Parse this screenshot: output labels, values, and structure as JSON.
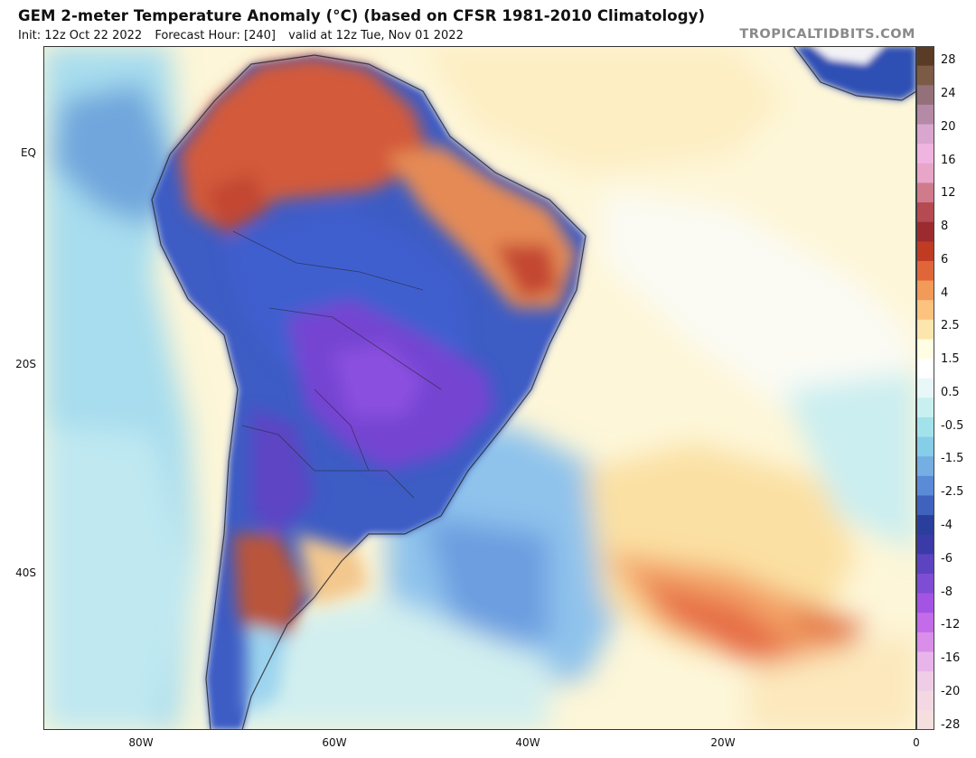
{
  "header": {
    "title": "GEM 2-meter Temperature Anomaly (°C) (based on CFSR 1981-2010 Climatology)",
    "init": "Init: 12z Oct 22 2022",
    "forecast_hour": "Forecast Hour: [240]",
    "valid": "valid at 12z Tue, Nov 01 2022",
    "credit": "TROPICALTIDBITS.COM"
  },
  "map": {
    "lat_labels": [
      "EQ",
      "20S",
      "40S"
    ],
    "lon_labels": [
      "80W",
      "60W",
      "40W",
      "20W",
      "0"
    ]
  },
  "colorbar": {
    "labels": [
      "28",
      "24",
      "20",
      "16",
      "12",
      "8",
      "6",
      "4",
      "2.5",
      "1.5",
      "0.5",
      "-0.5",
      "-1.5",
      "-2.5",
      "-4",
      "-6",
      "-8",
      "-12",
      "-16",
      "-20",
      "-28"
    ],
    "colors": [
      "#5a3b25",
      "#7b5a46",
      "#94707a",
      "#b58aa6",
      "#d9a6cf",
      "#f0b4e0",
      "#e7a5c7",
      "#d07b8c",
      "#b44a52",
      "#9b2b2e",
      "#bf3b22",
      "#e0663a",
      "#f29a58",
      "#fbc37e",
      "#fce6ad",
      "#fffde2",
      "#ffffff",
      "#e8f8f8",
      "#c9f0f1",
      "#a2e3eb",
      "#86cde8",
      "#74aee2",
      "#5b8ad6",
      "#3f62bd",
      "#2a3f9b",
      "#3a3aa8",
      "#5c43bf",
      "#7f4cd4",
      "#a454e2",
      "#c46be9",
      "#d98fea",
      "#e7b5ea",
      "#efcde6",
      "#f3d8e3",
      "#f5dede"
    ]
  }
}
